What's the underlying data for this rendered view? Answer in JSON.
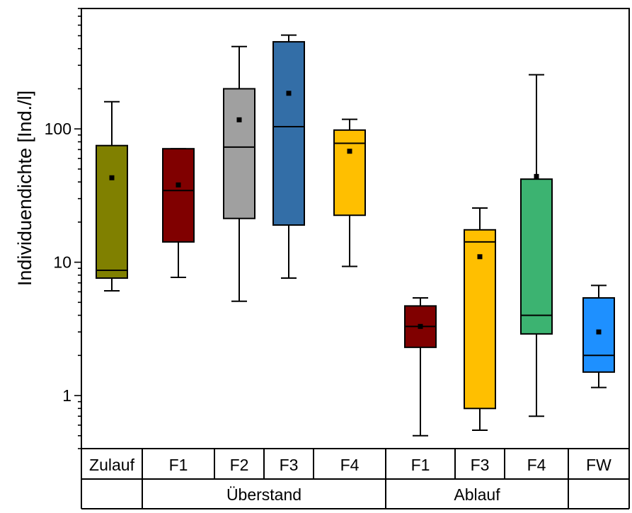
{
  "chart_data": {
    "type": "box",
    "ylabel": "Individuendichte [Ind./l]",
    "yscale": "log",
    "ylim": [
      0.4,
      800
    ],
    "yticks": [
      1,
      10,
      100
    ],
    "ytick_labels": [
      "1",
      "10",
      "100"
    ],
    "grid": false,
    "boxes": [
      {
        "label": "Zulauf",
        "group": "",
        "color": "#808000",
        "whisker_low": 6.1,
        "q1": 7.6,
        "median": 8.7,
        "q3": 75,
        "whisker_high": 160,
        "mean": 43
      },
      {
        "label": "F1",
        "group": "Überstand",
        "color": "#800000",
        "whisker_low": 7.7,
        "q1": 14.2,
        "median": 34.5,
        "q3": 71,
        "whisker_high": 71,
        "mean": 38
      },
      {
        "label": "F2",
        "group": "Überstand",
        "color": "#a0a0a0",
        "whisker_low": 5.1,
        "q1": 21.3,
        "median": 73,
        "q3": 200,
        "whisker_high": 415,
        "mean": 117
      },
      {
        "label": "F3",
        "group": "Überstand",
        "color": "#336ea7",
        "whisker_low": 7.6,
        "q1": 19,
        "median": 104,
        "q3": 450,
        "whisker_high": 505,
        "mean": 185
      },
      {
        "label": "F4",
        "group": "Überstand",
        "color": "#ffbf00",
        "whisker_low": 9.3,
        "q1": 22.5,
        "median": 78,
        "q3": 98,
        "whisker_high": 118,
        "mean": 68
      },
      {
        "label": "F1",
        "group": "Ablauf",
        "color": "#800000",
        "whisker_low": 0.5,
        "q1": 2.3,
        "median": 3.3,
        "q3": 4.7,
        "whisker_high": 5.4,
        "mean": 3.3
      },
      {
        "label": "F3",
        "group": "Ablauf",
        "color": "#ffbf00",
        "whisker_low": 0.55,
        "q1": 0.8,
        "median": 14.2,
        "q3": 17.5,
        "whisker_high": 25.5,
        "mean": 11
      },
      {
        "label": "F4",
        "group": "Ablauf",
        "color": "#3cb371",
        "whisker_low": 0.7,
        "q1": 2.9,
        "median": 4.0,
        "q3": 42,
        "whisker_high": 255,
        "mean": 44
      },
      {
        "label": "FW",
        "group": "",
        "color": "#1e90ff",
        "whisker_low": 1.15,
        "q1": 1.5,
        "median": 2.0,
        "q3": 5.4,
        "whisker_high": 6.7,
        "mean": 3.0
      }
    ],
    "groups": [
      "",
      "Überstand",
      "Ablauf",
      ""
    ]
  }
}
